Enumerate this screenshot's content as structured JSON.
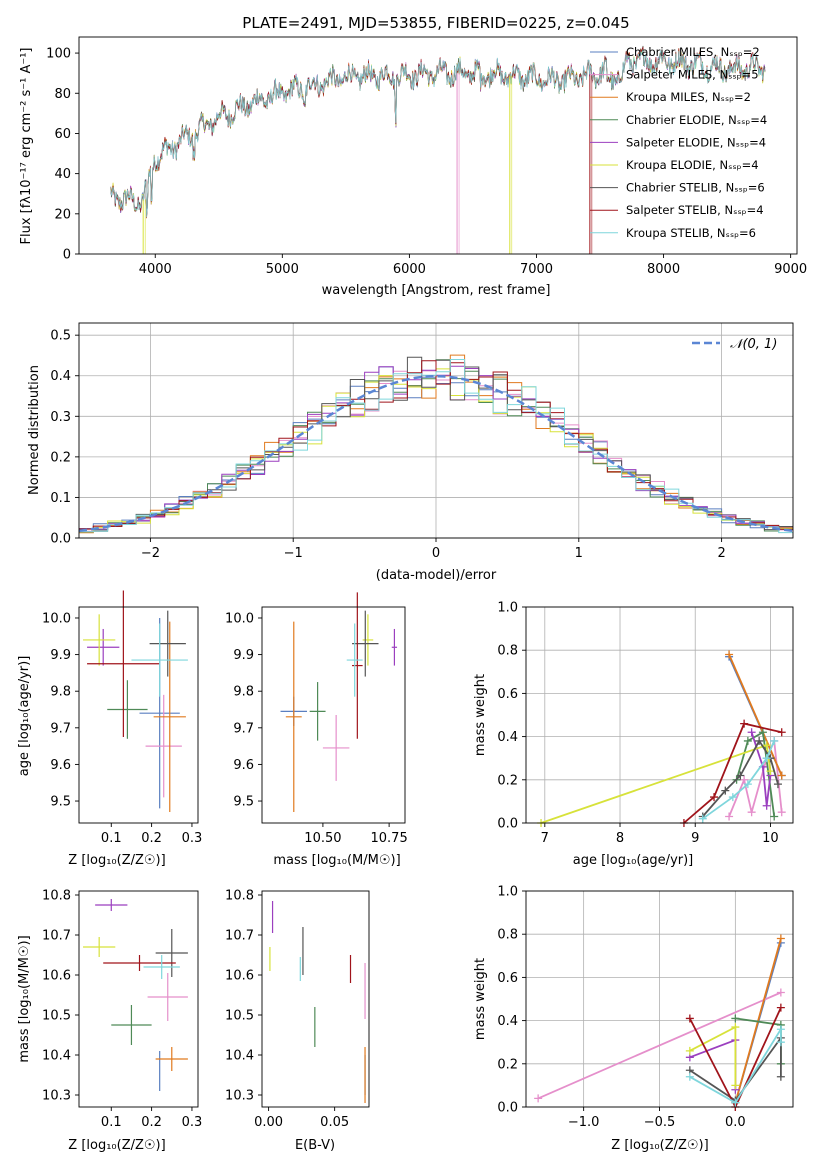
{
  "colors": [
    "#5a7fc0",
    "#e58fcb",
    "#e07a1f",
    "#4f8a57",
    "#9b3fbf",
    "#d7e23a",
    "#555555",
    "#a0141b",
    "#7fd6dc"
  ],
  "chart_data": [
    {
      "type": "line",
      "title": "PLATE=2491, MJD=53855, FIBERID=0225, z=0.045",
      "xlabel": "wavelength [Angstrom, rest frame]",
      "ylabel": "Flux [fλ10⁻¹⁷ erg cm⁻² s⁻¹ A⁻¹]",
      "xlim": [
        3400,
        9050
      ],
      "ylim": [
        0,
        108
      ],
      "xticks": [
        "4000",
        "5000",
        "6000",
        "7000",
        "8000",
        "9000"
      ],
      "yticks": [
        "0",
        "20",
        "40",
        "60",
        "80",
        "100"
      ],
      "legend_position": "right",
      "legend": [
        "Chabrier MILES, Nₛₛₚ=2",
        "Salpeter MILES, Nₛₛₚ=5",
        "Kroupa MILES, Nₛₛₚ=2",
        "Chabrier ELODIE, Nₛₛₚ=4",
        "Salpeter ELODIE, Nₛₛₚ=4",
        "Kroupa ELODIE, Nₛₛₚ=4",
        "Chabrier STELIB, Nₛₛₚ=6",
        "Salpeter STELIB, Nₛₛₚ=4",
        "Kroupa STELIB, Nₛₛₚ=6"
      ],
      "continuum": [
        [
          3650,
          28
        ],
        [
          3900,
          26
        ],
        [
          4000,
          48
        ],
        [
          4200,
          56
        ],
        [
          4500,
          68
        ],
        [
          4800,
          76
        ],
        [
          5100,
          82
        ],
        [
          5500,
          88
        ],
        [
          5900,
          89
        ],
        [
          6300,
          90
        ],
        [
          6600,
          90
        ],
        [
          6900,
          88
        ],
        [
          7200,
          86
        ],
        [
          7500,
          90
        ],
        [
          7700,
          96
        ],
        [
          8000,
          96
        ],
        [
          8200,
          95
        ],
        [
          8500,
          92
        ],
        [
          8800,
          93
        ]
      ],
      "dips": [
        {
          "x": 3905,
          "series": 5
        },
        {
          "x": 6375,
          "series": 1
        },
        {
          "x": 6790,
          "series": 5
        },
        {
          "x": 7420,
          "series": 7
        }
      ]
    },
    {
      "type": "histogram",
      "xlabel": "(data-model)/error",
      "ylabel": "Normed distribution",
      "xlim": [
        -2.5,
        2.5
      ],
      "ylim": [
        0,
        0.53
      ],
      "xticks": [
        "−2",
        "−1",
        "0",
        "1",
        "2"
      ],
      "yticks": [
        "0.0",
        "0.1",
        "0.2",
        "0.3",
        "0.4",
        "0.5"
      ],
      "legend": [
        "𝒩(0, 1)"
      ],
      "legend_position": "top-right",
      "grid": true,
      "bin_width": 0.1
    },
    {
      "type": "scatter",
      "xlabel": "Z [log₁₀(Z/Z☉)]",
      "ylabel": "age  [log₁₀(age/yr)]",
      "xlim": [
        0.02,
        0.315
      ],
      "ylim": [
        9.44,
        10.03
      ],
      "xticks": [
        "0.1",
        "0.2",
        "0.3"
      ],
      "yticks": [
        "9.5",
        "9.6",
        "9.7",
        "9.8",
        "9.9",
        "10.0"
      ],
      "points": [
        {
          "series": 0,
          "x": 0.22,
          "y": 9.74,
          "xerr": 0.05,
          "yerr": 0.26
        },
        {
          "series": 1,
          "x": 0.23,
          "y": 9.65,
          "xerr": 0.045,
          "yerr": 0.14
        },
        {
          "series": 2,
          "x": 0.245,
          "y": 9.73,
          "xerr": 0.04,
          "yerr": 0.26
        },
        {
          "series": 3,
          "x": 0.14,
          "y": 9.75,
          "xerr": 0.05,
          "yerr": 0.08
        },
        {
          "series": 4,
          "x": 0.08,
          "y": 9.92,
          "xerr": 0.04,
          "yerr": 0.05
        },
        {
          "series": 5,
          "x": 0.07,
          "y": 9.94,
          "xerr": 0.04,
          "yerr": 0.07
        },
        {
          "series": 6,
          "x": 0.24,
          "y": 9.93,
          "xerr": 0.045,
          "yerr": 0.09
        },
        {
          "series": 7,
          "x": 0.13,
          "y": 9.875,
          "xerr": 0.09,
          "yerr": 0.2
        },
        {
          "series": 8,
          "x": 0.22,
          "y": 9.885,
          "xerr": 0.07,
          "yerr": 0.1
        }
      ]
    },
    {
      "type": "scatter",
      "xlabel": "mass [log₁₀(M/M☉)]",
      "ylabel": "",
      "xlim": [
        10.27,
        10.81
      ],
      "ylim": [
        9.44,
        10.03
      ],
      "xticks": [
        "10.50",
        "10.75"
      ],
      "yticks": [
        "9.5",
        "9.6",
        "9.7",
        "9.8",
        "9.9",
        "10.0"
      ],
      "points": [
        {
          "series": 0,
          "x": 10.39,
          "y": 9.745,
          "xerr": 0.05,
          "yerr": 0.04
        },
        {
          "series": 1,
          "x": 10.55,
          "y": 9.645,
          "xerr": 0.05,
          "yerr": 0.09
        },
        {
          "series": 2,
          "x": 10.39,
          "y": 9.73,
          "xerr": 0.03,
          "yerr": 0.26
        },
        {
          "series": 3,
          "x": 10.48,
          "y": 9.745,
          "xerr": 0.03,
          "yerr": 0.08
        },
        {
          "series": 4,
          "x": 10.77,
          "y": 9.92,
          "xerr": 0.01,
          "yerr": 0.05
        },
        {
          "series": 5,
          "x": 10.67,
          "y": 9.94,
          "xerr": 0.02,
          "yerr": 0.07
        },
        {
          "series": 6,
          "x": 10.66,
          "y": 9.93,
          "xerr": 0.05,
          "yerr": 0.09
        },
        {
          "series": 7,
          "x": 10.63,
          "y": 9.87,
          "xerr": 0.02,
          "yerr": 0.2
        },
        {
          "series": 8,
          "x": 10.62,
          "y": 9.885,
          "xerr": 0.03,
          "yerr": 0.1
        }
      ]
    },
    {
      "type": "line",
      "xlabel": "age  [log₁₀(age/yr)]",
      "ylabel": "mass weight",
      "xlim": [
        6.75,
        10.3
      ],
      "ylim": [
        0,
        1.0
      ],
      "xticks": [
        "7",
        "8",
        "9",
        "10"
      ],
      "yticks": [
        "0.0",
        "0.2",
        "0.4",
        "0.6",
        "0.8",
        "1.0"
      ],
      "grid": true,
      "series": [
        {
          "series": 0,
          "points": [
            [
              9.45,
              0.77
            ],
            [
              10.15,
              0.22
            ]
          ]
        },
        {
          "series": 1,
          "points": [
            [
              9.45,
              0.03
            ],
            [
              9.65,
              0.2
            ],
            [
              9.75,
              0.05
            ],
            [
              9.95,
              0.3
            ],
            [
              10.05,
              0.38
            ],
            [
              10.15,
              0.05
            ]
          ]
        },
        {
          "series": 2,
          "points": [
            [
              9.45,
              0.78
            ],
            [
              10.15,
              0.22
            ]
          ]
        },
        {
          "series": 3,
          "points": [
            [
              9.55,
              0.2
            ],
            [
              9.7,
              0.38
            ],
            [
              9.9,
              0.42
            ],
            [
              10.05,
              0.03
            ]
          ]
        },
        {
          "series": 4,
          "points": [
            [
              9.75,
              0.42
            ],
            [
              9.9,
              0.26
            ],
            [
              9.95,
              0.08
            ],
            [
              10.0,
              0.22
            ]
          ]
        },
        {
          "series": 5,
          "points": [
            [
              6.95,
              0.0
            ],
            [
              9.95,
              0.36
            ],
            [
              10.0,
              0.24
            ]
          ]
        },
        {
          "series": 6,
          "points": [
            [
              9.1,
              0.03
            ],
            [
              9.4,
              0.15
            ],
            [
              9.6,
              0.22
            ],
            [
              9.85,
              0.38
            ],
            [
              10.0,
              0.3
            ],
            [
              10.1,
              0.18
            ]
          ]
        },
        {
          "series": 7,
          "points": [
            [
              8.85,
              0.0
            ],
            [
              9.25,
              0.12
            ],
            [
              9.65,
              0.46
            ],
            [
              10.15,
              0.42
            ]
          ]
        },
        {
          "series": 8,
          "points": [
            [
              9.1,
              0.02
            ],
            [
              9.5,
              0.12
            ],
            [
              9.7,
              0.18
            ],
            [
              9.95,
              0.3
            ],
            [
              10.05,
              0.38
            ]
          ]
        }
      ]
    },
    {
      "type": "scatter",
      "xlabel": "Z [log₁₀(Z/Z☉)]",
      "ylabel": "mass [log₁₀(M/M☉)]",
      "xlim": [
        0.02,
        0.315
      ],
      "ylim": [
        10.27,
        10.81
      ],
      "xticks": [
        "0.1",
        "0.2",
        "0.3"
      ],
      "yticks": [
        "10.3",
        "10.4",
        "10.5",
        "10.6",
        "10.7",
        "10.8"
      ],
      "points": [
        {
          "series": 0,
          "x": 0.22,
          "y": 10.36,
          "xerr": 0.0,
          "yerr": 0.05
        },
        {
          "series": 1,
          "x": 0.24,
          "y": 10.545,
          "xerr": 0.05,
          "yerr": 0.06
        },
        {
          "series": 2,
          "x": 0.25,
          "y": 10.39,
          "xerr": 0.04,
          "yerr": 0.03
        },
        {
          "series": 3,
          "x": 0.15,
          "y": 10.475,
          "xerr": 0.05,
          "yerr": 0.05
        },
        {
          "series": 4,
          "x": 0.1,
          "y": 10.775,
          "xerr": 0.04,
          "yerr": 0.015
        },
        {
          "series": 5,
          "x": 0.07,
          "y": 10.67,
          "xerr": 0.04,
          "yerr": 0.025
        },
        {
          "series": 6,
          "x": 0.25,
          "y": 10.655,
          "xerr": 0.04,
          "yerr": 0.06
        },
        {
          "series": 7,
          "x": 0.17,
          "y": 10.63,
          "xerr": 0.09,
          "yerr": 0.02
        },
        {
          "series": 8,
          "x": 0.225,
          "y": 10.62,
          "xerr": 0.045,
          "yerr": 0.03
        }
      ]
    },
    {
      "type": "scatter",
      "xlabel": "E(B-V)",
      "ylabel": "",
      "xlim": [
        -0.005,
        0.076
      ],
      "ylim": [
        10.27,
        10.81
      ],
      "xticks": [
        "0.00",
        "0.05"
      ],
      "yticks": [
        "10.3",
        "10.4",
        "10.5",
        "10.6",
        "10.7",
        "10.8"
      ],
      "points": [
        {
          "series": 0,
          "x": 0.073,
          "y": 10.35,
          "xerr": 0,
          "yerr": 0.05
        },
        {
          "series": 1,
          "x": 0.073,
          "y": 10.56,
          "xerr": 0,
          "yerr": 0.07
        },
        {
          "series": 2,
          "x": 0.073,
          "y": 10.35,
          "xerr": 0,
          "yerr": 0.07
        },
        {
          "series": 3,
          "x": 0.035,
          "y": 10.47,
          "xerr": 0,
          "yerr": 0.05
        },
        {
          "series": 4,
          "x": 0.003,
          "y": 10.745,
          "xerr": 0,
          "yerr": 0.04
        },
        {
          "series": 5,
          "x": 0.001,
          "y": 10.64,
          "xerr": 0,
          "yerr": 0.03
        },
        {
          "series": 6,
          "x": 0.026,
          "y": 10.66,
          "xerr": 0,
          "yerr": 0.06
        },
        {
          "series": 7,
          "x": 0.062,
          "y": 10.615,
          "xerr": 0,
          "yerr": 0.035
        },
        {
          "series": 8,
          "x": 0.024,
          "y": 10.615,
          "xerr": 0,
          "yerr": 0.03
        }
      ]
    },
    {
      "type": "line",
      "xlabel": "Z [log₁₀(Z/Z☉)]",
      "ylabel": "mass weight",
      "xlim": [
        -1.38,
        0.38
      ],
      "ylim": [
        0,
        1.0
      ],
      "xticks": [
        "−1.0",
        "−0.5",
        "0.0"
      ],
      "yticks": [
        "0.0",
        "0.2",
        "0.4",
        "0.6",
        "0.8",
        "1.0"
      ],
      "grid": true,
      "series": [
        {
          "series": 0,
          "points": [
            [
              0.0,
              0.02
            ],
            [
              0.3,
              0.76
            ]
          ]
        },
        {
          "series": 1,
          "points": [
            [
              -1.3,
              0.04
            ],
            [
              0.3,
              0.53
            ]
          ]
        },
        {
          "series": 2,
          "points": [
            [
              0.0,
              0.02
            ],
            [
              0.3,
              0.78
            ]
          ]
        },
        {
          "series": 3,
          "points": [
            [
              0.0,
              0.41
            ],
            [
              0.3,
              0.38
            ],
            [
              0.3,
              0.2
            ]
          ]
        },
        {
          "series": 4,
          "points": [
            [
              -0.3,
              0.23
            ],
            [
              0.0,
              0.31
            ],
            [
              0.0,
              0.08
            ]
          ]
        },
        {
          "series": 5,
          "points": [
            [
              -0.3,
              0.26
            ],
            [
              0.0,
              0.37
            ],
            [
              0.0,
              0.1
            ]
          ]
        },
        {
          "series": 6,
          "points": [
            [
              -0.3,
              0.17
            ],
            [
              0.0,
              0.03
            ],
            [
              0.3,
              0.32
            ],
            [
              0.3,
              0.14
            ]
          ]
        },
        {
          "series": 7,
          "points": [
            [
              -0.3,
              0.41
            ],
            [
              0.0,
              0.0
            ],
            [
              0.3,
              0.46
            ]
          ]
        },
        {
          "series": 8,
          "points": [
            [
              -0.3,
              0.14
            ],
            [
              0.0,
              0.02
            ],
            [
              0.3,
              0.36
            ],
            [
              0.3,
              0.3
            ]
          ]
        }
      ]
    }
  ]
}
